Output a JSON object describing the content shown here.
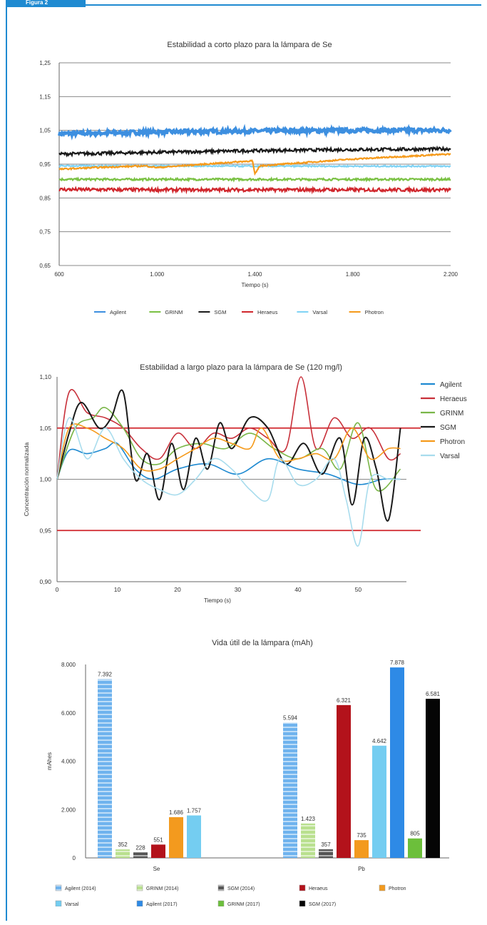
{
  "figure_label": "Figura 2",
  "chart_data": [
    {
      "type": "line",
      "title": "Estabilidad a corto plazo para la lámpara de Se",
      "xlabel": "Tiempo (s)",
      "ylabel": "",
      "xlim": [
        600,
        2200
      ],
      "ylim": [
        0.65,
        1.25
      ],
      "x_ticks": [
        "600",
        "1.000",
        "1.400",
        "1.800",
        "2.200"
      ],
      "y_ticks": [
        "1,25",
        "1,15",
        "1,05",
        "0,95",
        "0,85",
        "0,75",
        "0,65"
      ],
      "legend_position": "bottom",
      "grid": true,
      "series": [
        {
          "name": "Agilent",
          "color": "#3d8fe0",
          "x": [
            600,
            1000,
            1400,
            1800,
            2200
          ],
          "values": [
            1.04,
            1.045,
            1.048,
            1.05,
            1.05
          ]
        },
        {
          "name": "GRINM",
          "color": "#7ac143",
          "x": [
            600,
            1000,
            1400,
            1800,
            2200
          ],
          "values": [
            0.905,
            0.905,
            0.905,
            0.905,
            0.905
          ]
        },
        {
          "name": "SGM",
          "color": "#1a1a1a",
          "x": [
            600,
            1000,
            1400,
            1800,
            2200
          ],
          "values": [
            0.98,
            0.985,
            0.99,
            0.993,
            0.995
          ]
        },
        {
          "name": "Heraeus",
          "color": "#d0262c",
          "x": [
            600,
            1000,
            1400,
            1800,
            2200
          ],
          "values": [
            0.875,
            0.874,
            0.874,
            0.874,
            0.874
          ]
        },
        {
          "name": "Varsal",
          "color": "#7fd3f5",
          "x": [
            600,
            1000,
            1400,
            1800,
            2200
          ],
          "values": [
            0.945,
            0.945,
            0.944,
            0.944,
            0.944
          ]
        },
        {
          "name": "Photron",
          "color": "#f59a1b",
          "x": [
            600,
            750,
            950,
            1000,
            1390,
            1400,
            1420,
            1800,
            2200
          ],
          "values": [
            0.935,
            0.94,
            0.945,
            0.94,
            0.96,
            0.92,
            0.945,
            0.965,
            0.98
          ]
        }
      ]
    },
    {
      "type": "line",
      "title": "Estabilidad a largo plazo para la lámpara de Se (120 mg/l)",
      "xlabel": "Tiempo (s)",
      "ylabel": "Concentración normalizada",
      "xlim": [
        0,
        58
      ],
      "ylim": [
        0.9,
        1.1
      ],
      "x_ticks": [
        "0",
        "10",
        "20",
        "30",
        "40",
        "50"
      ],
      "y_ticks": [
        "1,10",
        "1,05",
        "1,00",
        "0,95",
        "0,90"
      ],
      "legend_position": "right",
      "limit_lines": [
        1.05,
        0.95
      ],
      "series": [
        {
          "name": "Agilent",
          "color": "#1f8ad1",
          "x": [
            0,
            2,
            5,
            8,
            10,
            13,
            16,
            20,
            25,
            30,
            35,
            40,
            45,
            50,
            54,
            57
          ],
          "values": [
            1.0,
            1.028,
            1.025,
            1.03,
            1.035,
            1.01,
            1.0,
            1.01,
            1.015,
            1.005,
            1.02,
            1.01,
            1.005,
            0.995,
            1.0,
            1.0
          ]
        },
        {
          "name": "Heraeus",
          "color": "#c8303a",
          "x": [
            0,
            2,
            5,
            8,
            11,
            14,
            17,
            20,
            23,
            26,
            29,
            32,
            35,
            38,
            40.5,
            43,
            46,
            49,
            52,
            55,
            57
          ],
          "values": [
            1.0,
            1.085,
            1.065,
            1.06,
            1.05,
            1.03,
            1.02,
            1.045,
            1.03,
            1.045,
            1.04,
            1.05,
            1.04,
            1.03,
            1.1,
            1.03,
            1.06,
            1.04,
            1.05,
            1.02,
            1.025
          ]
        },
        {
          "name": "GRINM",
          "color": "#7ab648",
          "x": [
            0,
            3,
            6,
            8,
            11,
            14,
            17,
            20,
            24,
            28,
            32,
            36,
            40,
            44,
            47,
            50,
            53,
            57
          ],
          "values": [
            1.0,
            1.05,
            1.06,
            1.07,
            1.05,
            1.02,
            1.015,
            1.03,
            1.035,
            1.03,
            1.045,
            1.03,
            1.02,
            1.03,
            1.01,
            1.055,
            0.99,
            1.01
          ]
        },
        {
          "name": "SGM",
          "color": "#1a1a1a",
          "x": [
            0,
            2,
            4,
            7,
            9,
            11,
            13,
            15,
            17,
            19,
            21,
            23,
            25,
            27,
            29,
            32,
            35,
            38,
            41,
            44,
            47,
            49,
            51,
            53,
            55,
            57
          ],
          "values": [
            1.0,
            1.045,
            1.075,
            1.05,
            1.06,
            1.085,
            1.0,
            1.025,
            0.98,
            1.035,
            0.99,
            1.04,
            1.01,
            1.055,
            1.03,
            1.06,
            1.05,
            1.015,
            1.035,
            1.005,
            1.04,
            0.975,
            1.04,
            1.01,
            0.96,
            1.05
          ]
        },
        {
          "name": "Photron",
          "color": "#f59a1b",
          "x": [
            0,
            2,
            5,
            8,
            11,
            14,
            17,
            20,
            23,
            26,
            29,
            32,
            34,
            37,
            40,
            43,
            46,
            49,
            52,
            55,
            57
          ],
          "values": [
            1.0,
            1.05,
            1.05,
            1.04,
            1.03,
            1.01,
            1.01,
            1.02,
            1.03,
            1.04,
            1.035,
            1.03,
            1.05,
            1.02,
            1.02,
            1.025,
            1.02,
            1.05,
            1.02,
            1.03,
            1.03
          ]
        },
        {
          "name": "Varsal",
          "color": "#a8dced",
          "x": [
            0,
            2,
            5,
            8,
            11,
            14,
            17,
            20,
            23,
            26,
            29,
            32,
            35,
            37,
            40,
            43,
            46,
            48,
            50,
            52,
            55,
            57
          ],
          "values": [
            1.0,
            1.06,
            1.02,
            1.05,
            1.02,
            1.0,
            0.99,
            0.985,
            1.0,
            1.02,
            1.01,
            0.99,
            0.98,
            1.02,
            0.995,
            1.0,
            1.02,
            0.98,
            0.935,
            1.0,
            1.0,
            1.0
          ]
        }
      ]
    },
    {
      "type": "bar",
      "title": "Vida útil de la lámpara (mAh)",
      "xlabel": "",
      "ylabel": "mAhes",
      "ylim": [
        0,
        8000
      ],
      "y_ticks": [
        "8.000",
        "6.000",
        "4.000",
        "2.000",
        "0"
      ],
      "categories": [
        "Se",
        "Pb"
      ],
      "legend_position": "bottom",
      "series": [
        {
          "name": "Agilent (2014)",
          "color": "#6fb3ee",
          "striped": true,
          "values": [
            7392,
            5594
          ],
          "labels": [
            "7.392",
            "5.594"
          ]
        },
        {
          "name": "GRINM (2014)",
          "color": "#b9e08f",
          "striped": true,
          "values": [
            352,
            1423
          ],
          "labels": [
            "352",
            "1.423"
          ]
        },
        {
          "name": "SGM (2014)",
          "color": "#555555",
          "striped": true,
          "values": [
            228,
            357
          ],
          "labels": [
            "228",
            "357"
          ]
        },
        {
          "name": "Heraeus",
          "color": "#b3121b",
          "striped": false,
          "values": [
            551,
            6321
          ],
          "labels": [
            "551",
            "6.321"
          ]
        },
        {
          "name": "Photron",
          "color": "#f39a1e",
          "striped": false,
          "values": [
            1686,
            735
          ],
          "labels": [
            "1.686",
            "735"
          ]
        },
        {
          "name": "Varsal",
          "color": "#74cdf1",
          "striped": false,
          "values": [
            1757,
            4642
          ],
          "labels": [
            "1.757",
            "4.642"
          ]
        },
        {
          "name": "Agilent (2017)",
          "color": "#2e8ae6",
          "striped": false,
          "values": [
            null,
            7878
          ],
          "labels": [
            "",
            "7.878"
          ]
        },
        {
          "name": "GRINM (2017)",
          "color": "#6cbf3b",
          "striped": false,
          "values": [
            null,
            805
          ],
          "labels": [
            "",
            "805"
          ]
        },
        {
          "name": "SGM (2017)",
          "color": "#050505",
          "striped": false,
          "values": [
            null,
            6581
          ],
          "labels": [
            "",
            "6.581"
          ]
        }
      ]
    }
  ]
}
